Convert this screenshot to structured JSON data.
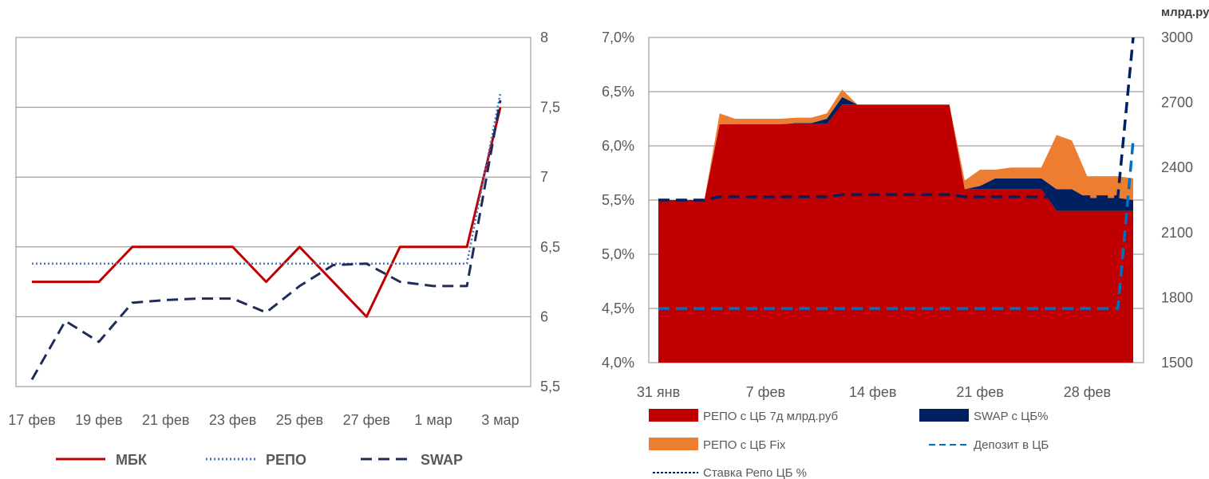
{
  "chart_data": [
    {
      "type": "line",
      "x": [
        "17 фев",
        "18 фев",
        "19 фев",
        "20 фев",
        "21 фев",
        "22 фев",
        "23 фев",
        "24 фев",
        "25 фев",
        "26 фев",
        "27 фев",
        "28 фев",
        "1 мар",
        "2 мар",
        "3 мар"
      ],
      "xtick_labels": [
        "17 фев",
        "19 фев",
        "21 фев",
        "23 фев",
        "25 фев",
        "27 фев",
        "1 мар",
        "3 мар"
      ],
      "ytick_labels": [
        "5,5",
        "6",
        "6,5",
        "7",
        "7,5",
        "8"
      ],
      "ylim": [
        5.5,
        8
      ],
      "y_axis_side": "right",
      "grid": true,
      "legend_position": "bottom",
      "series": [
        {
          "name": "МБК",
          "color": "#c00000",
          "style": "solid",
          "values": [
            6.25,
            6.25,
            6.25,
            6.5,
            6.5,
            6.5,
            6.5,
            6.25,
            6.5,
            6.25,
            6.0,
            6.5,
            6.5,
            6.5,
            7.5
          ]
        },
        {
          "name": "РЕПО",
          "color": "#4472c4",
          "style": "dotted",
          "values": [
            6.38,
            6.38,
            6.38,
            6.38,
            6.38,
            6.38,
            6.38,
            6.38,
            6.38,
            6.38,
            6.38,
            6.38,
            6.38,
            6.38,
            7.6
          ]
        },
        {
          "name": "SWAP",
          "color": "#1f2d5a",
          "style": "dashed",
          "values": [
            5.55,
            5.97,
            5.82,
            6.1,
            6.12,
            6.13,
            6.13,
            6.03,
            6.22,
            6.37,
            6.38,
            6.25,
            6.22,
            6.22,
            7.55
          ]
        }
      ]
    },
    {
      "type": "area",
      "x": [
        "31 янв",
        "1 фев",
        "2 фев",
        "3 фев",
        "4 фев",
        "5 фев",
        "6 фев",
        "7 фев",
        "8 фев",
        "9 фев",
        "10 фев",
        "11 фев",
        "12 фев",
        "13 фев",
        "14 фев",
        "15 фев",
        "16 фев",
        "17 фев",
        "18 фев",
        "19 фев",
        "20 фев",
        "21 фев",
        "22 фев",
        "23 фев",
        "24 фев",
        "25 фев",
        "26 фев",
        "27 фев",
        "28 фев",
        "1 мар",
        "2 мар",
        "3 мар"
      ],
      "xtick_labels": [
        "31 янв",
        "7 фев",
        "14 фев",
        "21 фев",
        "28 фев"
      ],
      "ytick_labels_left": [
        "4,0%",
        "4,5%",
        "5,0%",
        "5,5%",
        "6,0%",
        "6,5%",
        "7,0%"
      ],
      "ylim_left": [
        4.0,
        7.0
      ],
      "ytick_labels_right": [
        "1500",
        "1800",
        "2100",
        "2400",
        "2700",
        "3000"
      ],
      "ylim_right": [
        1500,
        3000
      ],
      "right_axis_unit": "млрд.руб",
      "grid": true,
      "legend_position": "bottom",
      "series": [
        {
          "name": "РЕПО с ЦБ 7д млрд.руб",
          "color": "#c00000",
          "kind": "stacked-area",
          "values": [
            5.5,
            5.5,
            5.5,
            5.5,
            6.2,
            6.2,
            6.2,
            6.2,
            6.2,
            6.2,
            6.2,
            6.2,
            6.38,
            6.38,
            6.38,
            6.38,
            6.38,
            6.38,
            6.38,
            6.38,
            5.6,
            5.6,
            5.6,
            5.6,
            5.6,
            5.6,
            5.4,
            5.4,
            5.4,
            5.4,
            5.4,
            5.4
          ]
        },
        {
          "name": "SWAP с ЦБ%",
          "color": "#002060",
          "kind": "stacked-area",
          "values": [
            0,
            0,
            0,
            0,
            0,
            0,
            0,
            0,
            0,
            0.01,
            0.01,
            0.05,
            0.07,
            0,
            0,
            0,
            0,
            0,
            0,
            0,
            0,
            0.03,
            0.1,
            0.1,
            0.1,
            0.1,
            0.2,
            0.2,
            0.12,
            0.12,
            0.12,
            0.1
          ]
        },
        {
          "name": "РЕПО с ЦБ Fix",
          "color": "#ed7d31",
          "kind": "stacked-area",
          "values": [
            0,
            0,
            0,
            0,
            0.1,
            0.05,
            0.05,
            0.05,
            0.05,
            0.05,
            0.05,
            0.05,
            0.07,
            0,
            0,
            0,
            0,
            0,
            0,
            0,
            0.08,
            0.15,
            0.08,
            0.1,
            0.1,
            0.1,
            0.5,
            0.45,
            0.2,
            0.2,
            0.2,
            0.2
          ]
        },
        {
          "name": "Депозит в ЦБ",
          "color": "#0070c0",
          "kind": "dashed-line",
          "values": [
            4.5,
            4.5,
            4.5,
            4.5,
            4.5,
            4.5,
            4.5,
            4.5,
            4.5,
            4.5,
            4.5,
            4.5,
            4.5,
            4.5,
            4.5,
            4.5,
            4.5,
            4.5,
            4.5,
            4.5,
            4.5,
            4.5,
            4.5,
            4.5,
            4.5,
            4.5,
            4.5,
            4.5,
            4.5,
            4.5,
            4.5,
            6.05
          ]
        },
        {
          "name": "Ставка Репо ЦБ %",
          "color": "#002060",
          "kind": "dashed-line",
          "values": [
            5.5,
            5.5,
            5.5,
            5.5,
            5.53,
            5.53,
            5.53,
            5.53,
            5.53,
            5.53,
            5.53,
            5.53,
            5.55,
            5.55,
            5.55,
            5.55,
            5.55,
            5.55,
            5.55,
            5.55,
            5.53,
            5.53,
            5.53,
            5.53,
            5.53,
            5.53,
            5.53,
            5.53,
            5.53,
            5.53,
            5.53,
            7.0
          ]
        }
      ]
    }
  ]
}
